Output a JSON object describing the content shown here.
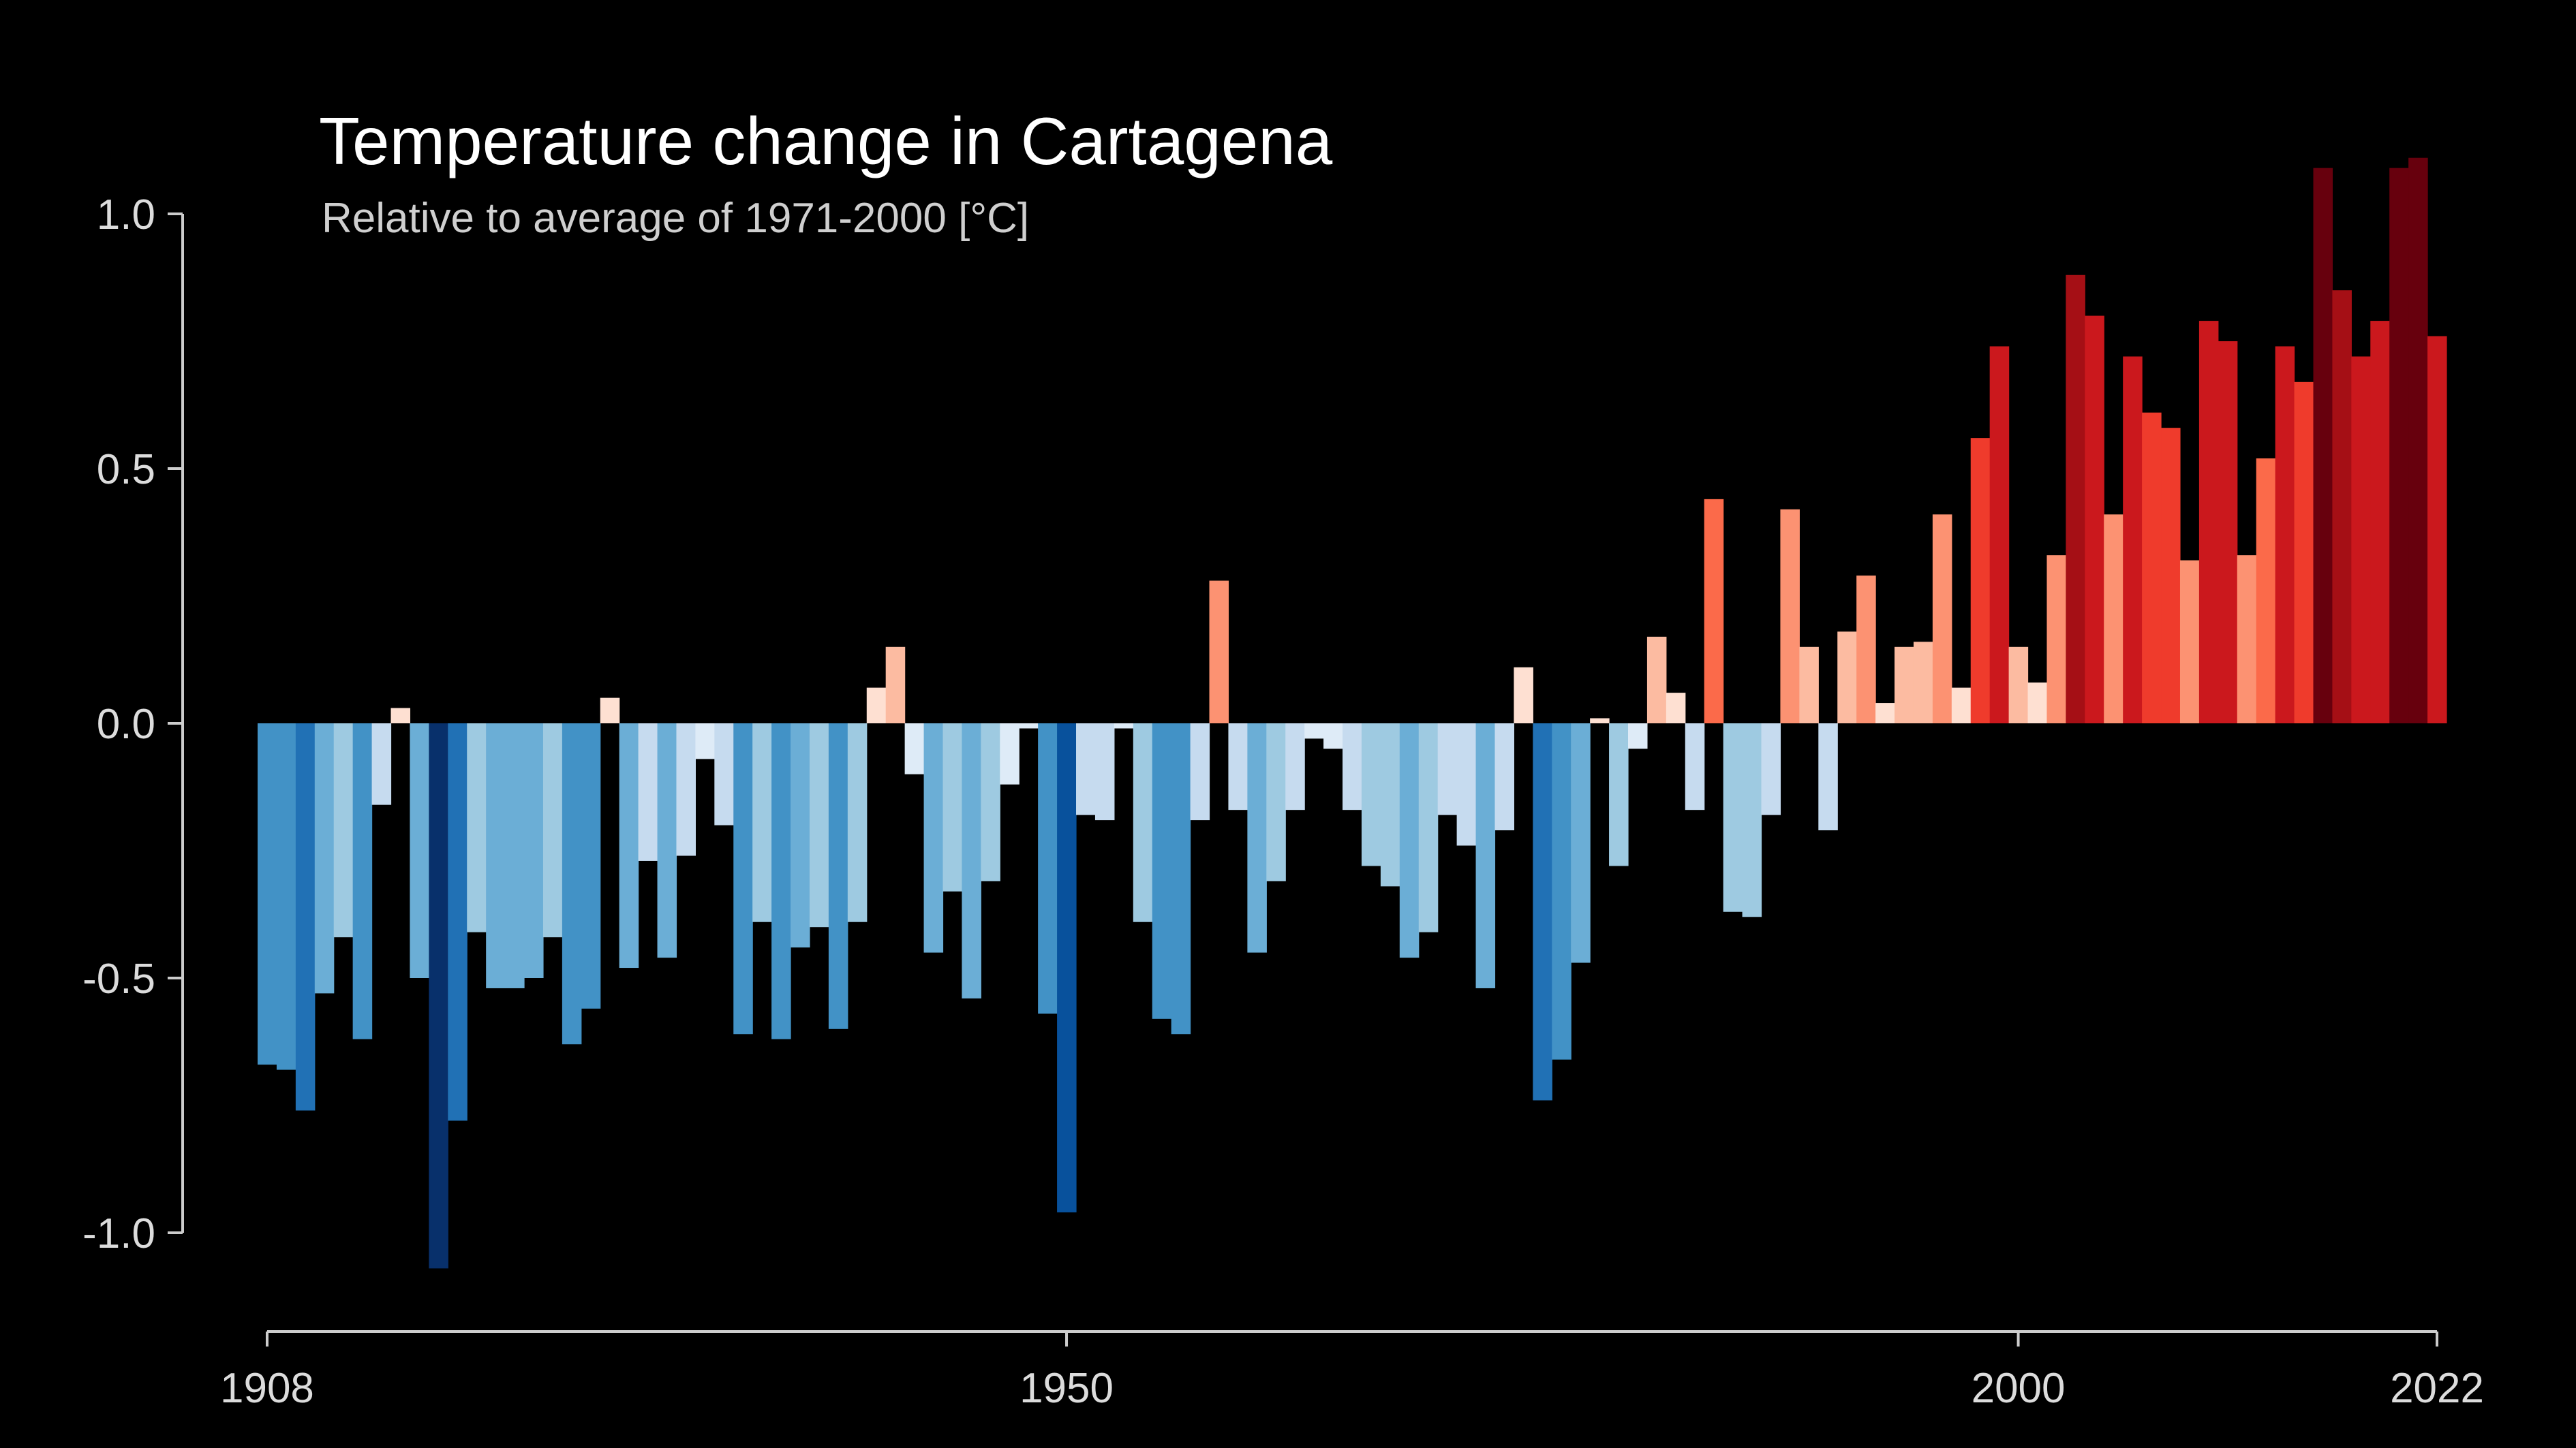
{
  "chart_data": {
    "type": "bar",
    "title": "Temperature change in Cartagena",
    "subtitle": "Relative to average of 1971-2000  [°C]",
    "xlabel": "",
    "ylabel": "",
    "x_start": 1908,
    "x_end": 2022,
    "x_ticks": [
      1908,
      1950,
      2000,
      2022
    ],
    "y_ticks": [
      1.0,
      0.5,
      0.0,
      -0.5,
      -1.0
    ],
    "y_tick_labels": [
      "1.0",
      "0.5",
      "0.0",
      "-0.5",
      "-1.0"
    ],
    "ylim": [
      -1.1,
      1.15
    ],
    "grid": false,
    "legend": "none",
    "series": [
      {
        "values": [
          -0.67,
          -0.68,
          -0.76,
          -0.53,
          -0.42,
          -0.62,
          -0.16,
          0.03,
          -0.5,
          -1.07,
          -0.78,
          -0.41,
          -0.52,
          -0.52,
          -0.5,
          -0.42,
          -0.63,
          -0.56,
          0.05,
          -0.48,
          -0.27,
          -0.46,
          -0.26,
          -0.07,
          -0.2,
          -0.61,
          -0.39,
          -0.62,
          -0.44,
          -0.4,
          -0.6,
          -0.39,
          0.07,
          0.15,
          -0.1,
          -0.45,
          -0.33,
          -0.54,
          -0.31,
          -0.12,
          -0.01,
          -0.57,
          -0.96,
          -0.18,
          -0.19,
          -0.01,
          -0.39,
          -0.58,
          -0.61,
          -0.19,
          0.28,
          -0.17,
          -0.45,
          -0.31,
          -0.17,
          -0.03,
          -0.05,
          -0.17,
          -0.28,
          -0.32,
          -0.46,
          -0.41,
          -0.18,
          -0.24,
          -0.52,
          -0.21,
          0.11,
          -0.74,
          -0.66,
          -0.47,
          0.01,
          -0.28,
          -0.05,
          0.17,
          0.06,
          -0.17,
          0.44,
          -0.37,
          -0.38,
          -0.18,
          0.42,
          0.15,
          -0.21,
          0.18,
          0.29,
          0.04,
          0.15,
          0.16,
          0.41,
          0.07,
          0.56,
          0.74,
          0.15,
          0.08,
          0.33,
          0.88,
          0.8,
          0.41,
          0.72,
          0.61,
          0.58,
          0.32,
          0.79,
          0.75,
          0.33,
          0.52,
          0.74,
          0.67,
          1.09,
          0.85,
          0.72,
          0.79,
          1.09,
          1.11,
          0.76
        ]
      }
    ],
    "colors": {
      "background": "#000000",
      "axis": "#cccccc",
      "cold_scale": [
        "#08306b",
        "#08519c",
        "#2171b5",
        "#4292c6",
        "#6baed6",
        "#9ecae1",
        "#c6dbef",
        "#deebf7"
      ],
      "warm_scale": [
        "#fee0d2",
        "#fcbba1",
        "#fc9272",
        "#fb6a4a",
        "#ef3b2c",
        "#cb181d",
        "#a50f15",
        "#67000d"
      ]
    }
  }
}
